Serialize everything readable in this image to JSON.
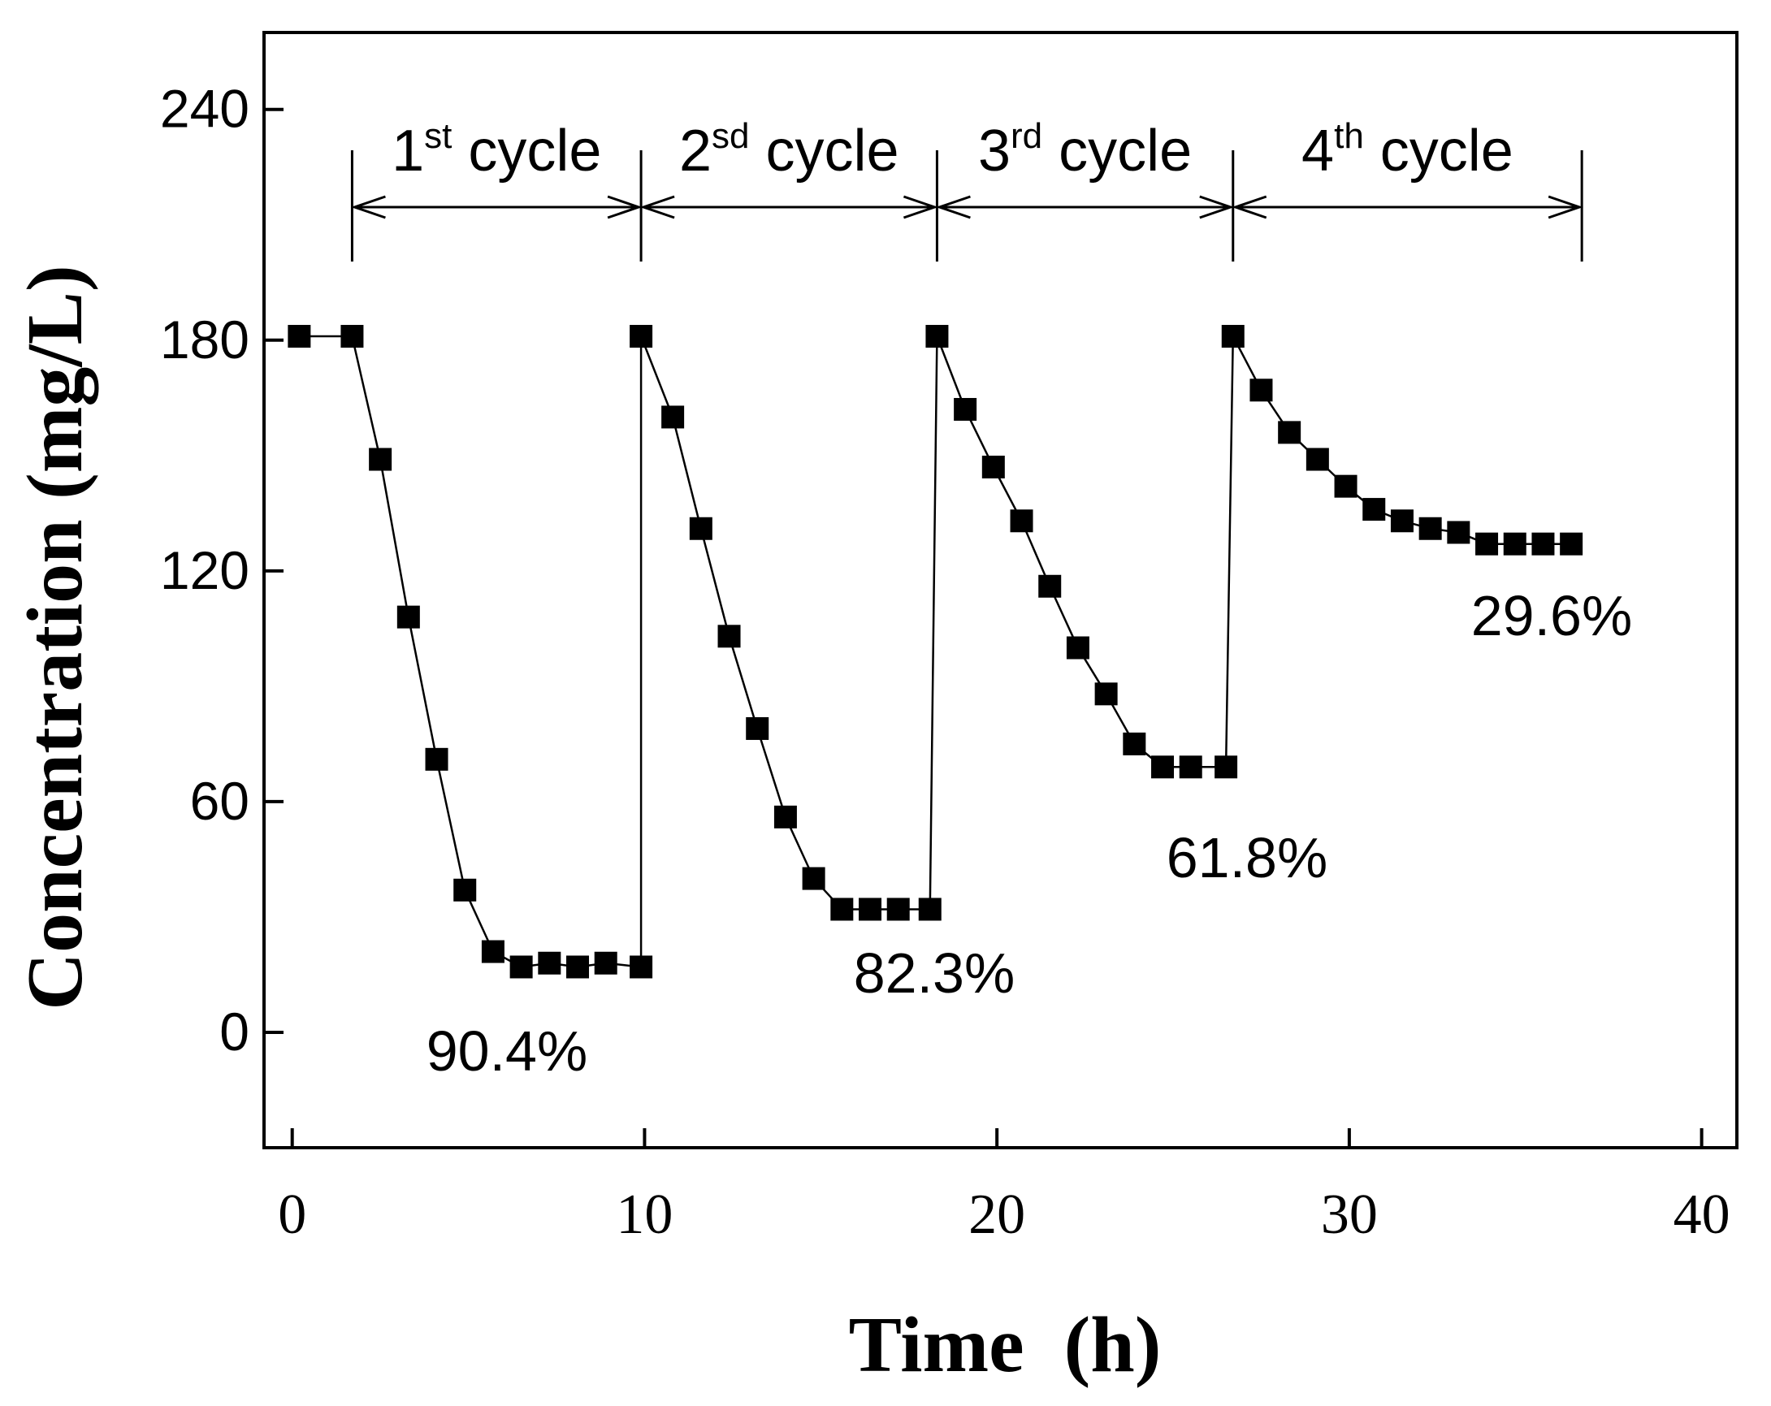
{
  "chart_data": {
    "type": "line",
    "xlabel": "Time  (h)",
    "ylabel": "Concentration (mg/L)",
    "xlim": [
      -0.8,
      41
    ],
    "ylim": [
      -30,
      260
    ],
    "xticks": [
      "0",
      "10",
      "20",
      "30",
      "40"
    ],
    "yticks": [
      "0",
      "60",
      "120",
      "180",
      "240"
    ],
    "series": [
      {
        "name": "1st cycle",
        "x": [
          0.2,
          1.7,
          2.5,
          3.3,
          4.1,
          4.9,
          5.7,
          6.5,
          7.3,
          8.1,
          8.9,
          9.9
        ],
        "y": [
          181,
          181,
          149,
          108,
          71,
          37,
          21,
          17,
          18,
          17,
          18,
          17
        ]
      },
      {
        "name": "2sd cycle",
        "x": [
          9.9,
          10.8,
          11.6,
          12.4,
          13.2,
          14.0,
          14.8,
          15.6,
          16.4,
          17.2,
          18.1
        ],
        "y": [
          181,
          160,
          131,
          103,
          79,
          56,
          40,
          32,
          32,
          32,
          32
        ]
      },
      {
        "name": "3rd cycle",
        "x": [
          18.3,
          19.1,
          19.9,
          20.7,
          21.5,
          22.3,
          23.1,
          23.9,
          24.7,
          25.5,
          26.5
        ],
        "y": [
          181,
          162,
          147,
          133,
          116,
          100,
          88,
          75,
          69,
          69,
          69
        ]
      },
      {
        "name": "4th cycle",
        "x": [
          26.7,
          27.5,
          28.3,
          29.1,
          29.9,
          30.7,
          31.5,
          32.3,
          33.1,
          33.9,
          34.7,
          35.5,
          36.3
        ],
        "y": [
          181,
          167,
          156,
          149,
          142,
          136,
          133,
          131,
          130,
          127,
          127,
          127,
          127
        ]
      }
    ],
    "cycle_labels": [
      {
        "main": "1",
        "sup": "st",
        "rest": " cycle",
        "x_start": 1.7,
        "x_end": 9.9
      },
      {
        "main": "2",
        "sup": "sd",
        "rest": " cycle",
        "x_start": 9.9,
        "x_end": 18.3
      },
      {
        "main": "3",
        "sup": "rd",
        "rest": " cycle",
        "x_start": 18.3,
        "x_end": 26.7
      },
      {
        "main": "4",
        "sup": "th",
        "rest": " cycle",
        "x_start": 26.7,
        "x_end": 36.6
      }
    ],
    "annotations": [
      "90.4%",
      "82.3%",
      "61.8%",
      "29.6%"
    ]
  }
}
